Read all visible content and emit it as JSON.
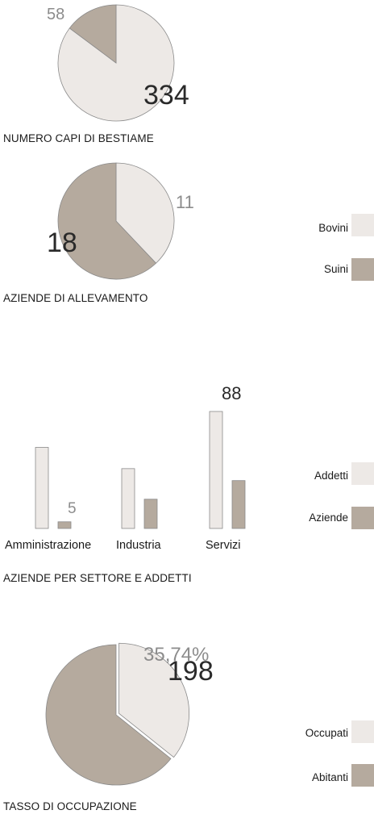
{
  "colors": {
    "light": "#ede9e6",
    "dark": "#b5aa9e",
    "stroke": "#8a8a8a",
    "label_dark": "#2a2a2a",
    "label_grey": "#8c8c8c"
  },
  "charts": {
    "livestock": {
      "caption": "NUMERO CAPI DI BESTIAME",
      "chart_data": {
        "type": "pie",
        "title": "NUMERO CAPI DI BESTIAME",
        "slices": [
          {
            "name": "Bovini",
            "value": 334
          },
          {
            "name": "Suini",
            "value": 58
          }
        ]
      },
      "labels": {
        "big": "334",
        "small": "58"
      }
    },
    "farms": {
      "caption": "AZIENDE DI ALLEVAMENTO",
      "chart_data": {
        "type": "pie",
        "title": "AZIENDE DI ALLEVAMENTO",
        "slices": [
          {
            "name": "Bovini",
            "value": 11
          },
          {
            "name": "Suini",
            "value": 18
          }
        ]
      },
      "labels": {
        "small": "11",
        "big": "18"
      }
    },
    "sectors": {
      "caption": "AZIENDE PER SETTORE E ADDETTI",
      "chart_data": {
        "type": "bar",
        "title": "AZIENDE PER SETTORE E ADDETTI",
        "categories": [
          "Amministrazione",
          "Industria",
          "Servizi"
        ],
        "series": [
          {
            "name": "Addetti",
            "values": [
              61,
              45,
              88
            ]
          },
          {
            "name": "Aziende",
            "values": [
              5,
              22,
              36
            ]
          }
        ],
        "ylim": [
          0,
          88
        ]
      },
      "labels": {
        "top": "88",
        "min": "5"
      }
    },
    "employment": {
      "caption": "TASSO DI OCCUPAZIONE",
      "chart_data": {
        "type": "pie",
        "title": "TASSO DI OCCUPAZIONE",
        "slices": [
          {
            "name": "Occupati",
            "value": 198
          },
          {
            "name": "Abitanti",
            "value": 356
          }
        ]
      },
      "labels": {
        "percent": "35,74%",
        "count": "198"
      }
    }
  },
  "legends": {
    "livestock": [
      {
        "label": "Bovini",
        "color": "#ede9e6"
      },
      {
        "label": "Suini",
        "color": "#b5aa9e"
      }
    ],
    "sectors": [
      {
        "label": "Addetti",
        "color": "#ede9e6"
      },
      {
        "label": "Aziende",
        "color": "#b5aa9e"
      }
    ],
    "employment": [
      {
        "label": "Occupati",
        "color": "#ede9e6"
      },
      {
        "label": "Abitanti",
        "color": "#b5aa9e"
      }
    ]
  }
}
